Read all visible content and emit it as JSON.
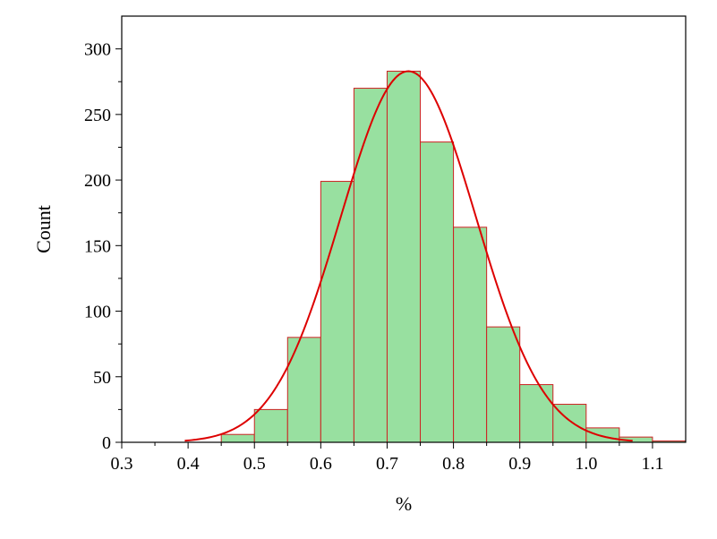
{
  "chart_data": {
    "type": "bar",
    "title": "",
    "xlabel": "%",
    "ylabel": "Count",
    "xlim": [
      0.3,
      1.15
    ],
    "ylim": [
      0,
      325
    ],
    "xticks": [
      "0.3",
      "0.4",
      "0.5",
      "0.6",
      "0.7",
      "0.8",
      "0.9",
      "1.0",
      "1.1"
    ],
    "yticks": [
      "0",
      "50",
      "100",
      "150",
      "200",
      "250",
      "300"
    ],
    "bin_width": 0.05,
    "bins": [
      {
        "start": 0.45,
        "end": 0.5,
        "count": 6
      },
      {
        "start": 0.5,
        "end": 0.55,
        "count": 25
      },
      {
        "start": 0.55,
        "end": 0.6,
        "count": 80
      },
      {
        "start": 0.6,
        "end": 0.65,
        "count": 199
      },
      {
        "start": 0.65,
        "end": 0.7,
        "count": 270
      },
      {
        "start": 0.7,
        "end": 0.75,
        "count": 283
      },
      {
        "start": 0.75,
        "end": 0.8,
        "count": 229
      },
      {
        "start": 0.8,
        "end": 0.85,
        "count": 164
      },
      {
        "start": 0.85,
        "end": 0.9,
        "count": 88
      },
      {
        "start": 0.9,
        "end": 0.95,
        "count": 44
      },
      {
        "start": 0.95,
        "end": 1.0,
        "count": 29
      },
      {
        "start": 1.0,
        "end": 1.05,
        "count": 11
      },
      {
        "start": 1.05,
        "end": 1.1,
        "count": 4
      },
      {
        "start": 1.1,
        "end": 1.15,
        "count": 1
      }
    ],
    "fit_curve": {
      "type": "normal",
      "mean": 0.732,
      "sd": 0.102,
      "peak": 283,
      "x_range": [
        0.395,
        1.07
      ]
    },
    "bar_fill": "#98e0a0",
    "bar_edge": "#cc2222",
    "curve_color": "#dd0000",
    "grid": false,
    "legend": "none"
  }
}
